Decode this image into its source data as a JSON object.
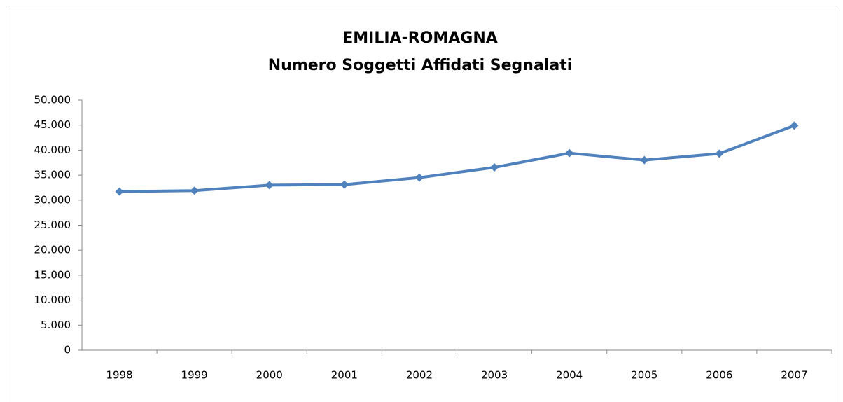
{
  "chart_data": {
    "type": "line",
    "title": "EMILIA-ROMAGNA",
    "subtitle": "Numero Soggetti Affidati Segnalati",
    "categories": [
      "1998",
      "1999",
      "2000",
      "2001",
      "2002",
      "2003",
      "2004",
      "2005",
      "2006",
      "2007"
    ],
    "series": [
      {
        "name": "Numero Soggetti Affidati Segnalati",
        "color": "#4f81bd",
        "values": [
          31700,
          31900,
          33000,
          33100,
          34500,
          36550,
          39400,
          38000,
          39300,
          44900
        ]
      }
    ],
    "ylim": [
      0,
      50000
    ],
    "yticks": [
      0,
      {
        "value": 5000,
        "label": "5.000"
      },
      {
        "value": 10000,
        "label": "10.000"
      },
      {
        "value": 15000,
        "label": "15.000"
      },
      {
        "value": 20000,
        "label": "20.000"
      },
      {
        "value": 25000,
        "label": "25.000"
      },
      {
        "value": 30000,
        "label": "30.000"
      },
      {
        "value": 35000,
        "label": "35.000"
      },
      {
        "value": 40000,
        "label": "40.000"
      },
      {
        "value": 45000,
        "label": "45.000"
      },
      {
        "value": 50000,
        "label": "50.000"
      }
    ],
    "grid": false
  }
}
